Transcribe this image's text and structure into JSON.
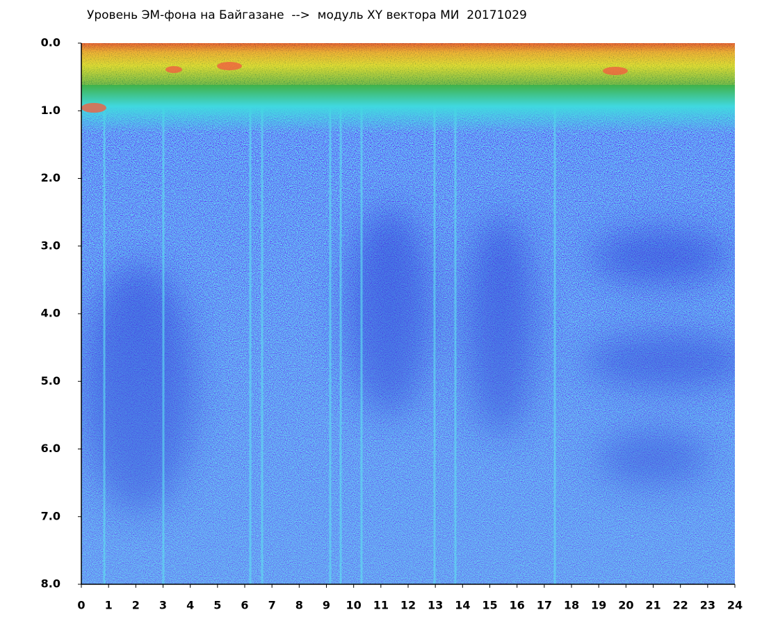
{
  "chart_data": {
    "type": "heatmap",
    "title": "Уровень ЭМ-фона на Байгазане  -->  модуль XY вектора МИ  20171029",
    "xlim": [
      0,
      24
    ],
    "xticks": [
      0,
      1,
      2,
      3,
      4,
      5,
      6,
      7,
      8,
      9,
      10,
      11,
      12,
      13,
      14,
      15,
      16,
      17,
      18,
      19,
      20,
      21,
      22,
      23,
      24
    ],
    "ylim": [
      0,
      8
    ],
    "yticks": [
      {
        "value": 0,
        "label": "0.0"
      },
      {
        "value": 1,
        "label": "1.0"
      },
      {
        "value": 2,
        "label": "2.0"
      },
      {
        "value": 3,
        "label": "3.0"
      },
      {
        "value": 4,
        "label": "4.0"
      },
      {
        "value": 5,
        "label": "5.0"
      },
      {
        "value": 6,
        "label": "6.0"
      },
      {
        "value": 7,
        "label": "7.0"
      },
      {
        "value": 8,
        "label": "8.0"
      }
    ],
    "y_inverted": true
  }
}
